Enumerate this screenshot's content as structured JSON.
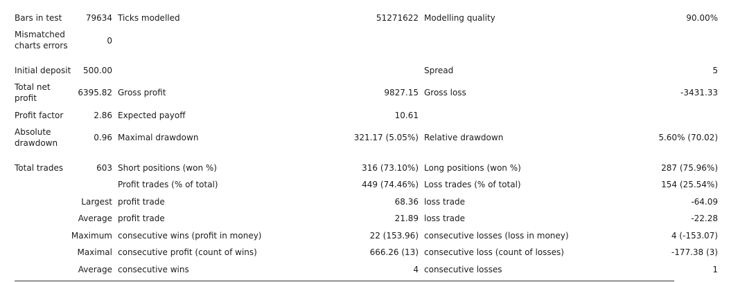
{
  "report": {
    "bars_in_test": {
      "label": "Bars in test",
      "value": "79634"
    },
    "ticks_modelled": {
      "label": "Ticks modelled",
      "value": "51271622"
    },
    "modelling_quality": {
      "label": "Modelling quality",
      "value": "90.00%"
    },
    "mismatched_charts_errors": {
      "label": "Mismatched charts errors",
      "value": "0"
    },
    "initial_deposit": {
      "label": "Initial deposit",
      "value": "500.00"
    },
    "spread": {
      "label": "Spread",
      "value": "5"
    },
    "total_net_profit": {
      "label": "Total net profit",
      "value": "6395.82"
    },
    "gross_profit": {
      "label": "Gross profit",
      "value": "9827.15"
    },
    "gross_loss": {
      "label": "Gross loss",
      "value": "-3431.33"
    },
    "profit_factor": {
      "label": "Profit factor",
      "value": "2.86"
    },
    "expected_payoff": {
      "label": "Expected payoff",
      "value": "10.61"
    },
    "absolute_drawdown": {
      "label": "Absolute drawdown",
      "value": "0.96"
    },
    "maximal_drawdown": {
      "label": "Maximal drawdown",
      "value": "321.17 (5.05%)"
    },
    "relative_drawdown": {
      "label": "Relative drawdown",
      "value": "5.60% (70.02)"
    },
    "total_trades": {
      "label": "Total trades",
      "value": "603"
    },
    "short_positions": {
      "label": "Short positions (won %)",
      "value": "316 (73.10%)"
    },
    "long_positions": {
      "label": "Long positions (won %)",
      "value": "287 (75.96%)"
    },
    "profit_trades": {
      "label": "Profit trades (% of total)",
      "value": "449 (74.46%)"
    },
    "loss_trades": {
      "label": "Loss trades (% of total)",
      "value": "154 (25.54%)"
    },
    "largest": {
      "prefix": "Largest",
      "profit_label": "profit trade",
      "profit_value": "68.36",
      "loss_label": "loss trade",
      "loss_value": "-64.09"
    },
    "average": {
      "prefix": "Average",
      "profit_label": "profit trade",
      "profit_value": "21.89",
      "loss_label": "loss trade",
      "loss_value": "-22.28"
    },
    "maximum": {
      "prefix": "Maximum",
      "wins_label": "consecutive wins (profit in money)",
      "wins_value": "22 (153.96)",
      "losses_label": "consecutive losses (loss in money)",
      "losses_value": "4 (-153.07)"
    },
    "maximal": {
      "prefix": "Maximal",
      "profit_label": "consecutive profit (count of wins)",
      "profit_value": "666.26 (13)",
      "loss_label": "consecutive loss (count of losses)",
      "loss_value": "-177.38 (3)"
    },
    "average_consecutive": {
      "prefix": "Average",
      "wins_label": "consecutive wins",
      "wins_value": "4",
      "losses_label": "consecutive losses",
      "losses_value": "1"
    }
  }
}
